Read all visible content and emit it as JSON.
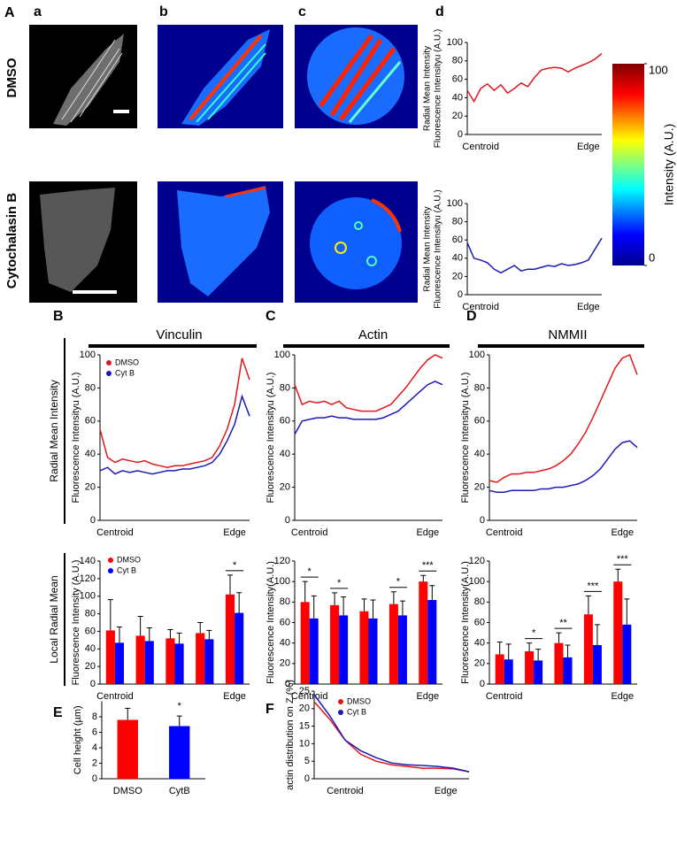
{
  "figure": {
    "panel_labels": [
      "A",
      "a",
      "b",
      "c",
      "d",
      "B",
      "C",
      "D",
      "E",
      "F"
    ],
    "row_labels": [
      "DMSO",
      "Cytochalasin B"
    ],
    "side_labels": [
      "Radial Mean Intensity",
      "Local Radial Mean"
    ],
    "colorbar": {
      "label": "Intensity (A.U.)",
      "lim": [
        0,
        100
      ],
      "ticks": [
        0,
        100
      ]
    }
  },
  "chart_data": [
    {
      "type": "line",
      "ylabel": [
        "Radial Mean Intensity",
        "Fluorescence Intensityu (A.U.)"
      ],
      "x": [
        0,
        0.05,
        0.1,
        0.15,
        0.2,
        0.25,
        0.3,
        0.35,
        0.4,
        0.45,
        0.5,
        0.55,
        0.6,
        0.65,
        0.7,
        0.75,
        0.8,
        0.85,
        0.9,
        0.95,
        1
      ],
      "xlim": [
        0,
        1
      ],
      "xticks": [
        {
          "value": 0.1,
          "label": "Centroid"
        },
        {
          "value": 0.9,
          "label": "Edge"
        }
      ],
      "ylim": [
        0,
        100
      ],
      "yticks": [
        0,
        20,
        40,
        60,
        80,
        100
      ],
      "legend": false,
      "series": [
        {
          "color": "#e3161c",
          "values": [
            48,
            36,
            50,
            55,
            48,
            54,
            45,
            50,
            56,
            52,
            62,
            70,
            72,
            73,
            72,
            68,
            72,
            75,
            78,
            82,
            88
          ]
        }
      ]
    },
    {
      "type": "line",
      "ylabel": [
        "Radial Mean Intensity",
        "Fluorescence Intensityu (A.U.)"
      ],
      "x": [
        0,
        0.05,
        0.1,
        0.15,
        0.2,
        0.25,
        0.3,
        0.35,
        0.4,
        0.45,
        0.5,
        0.55,
        0.6,
        0.65,
        0.7,
        0.75,
        0.8,
        0.85,
        0.9,
        0.95,
        1
      ],
      "xlim": [
        0,
        1
      ],
      "xticks": [
        {
          "value": 0.1,
          "label": "Centroid"
        },
        {
          "value": 0.9,
          "label": "Edge"
        }
      ],
      "ylim": [
        0,
        100
      ],
      "yticks": [
        0,
        20,
        40,
        60,
        80,
        100
      ],
      "legend": false,
      "series": [
        {
          "color": "#1a1ab8",
          "values": [
            57,
            40,
            38,
            35,
            28,
            24,
            28,
            32,
            26,
            28,
            28,
            30,
            32,
            31,
            34,
            32,
            33,
            35,
            38,
            50,
            62
          ]
        }
      ]
    },
    {
      "type": "line",
      "title": "Vinculin",
      "ylabel": "Fluorescence Intensityu (A.U.)",
      "x": [
        0,
        0.05,
        0.1,
        0.15,
        0.2,
        0.25,
        0.3,
        0.35,
        0.4,
        0.45,
        0.5,
        0.55,
        0.6,
        0.65,
        0.7,
        0.75,
        0.8,
        0.85,
        0.9,
        0.95,
        1
      ],
      "xlim": [
        0,
        1
      ],
      "xticks": [
        {
          "value": 0.1,
          "label": "Centroid"
        },
        {
          "value": 0.9,
          "label": "Edge"
        }
      ],
      "ylim": [
        0,
        100
      ],
      "yticks": [
        0,
        20,
        40,
        60,
        80,
        100
      ],
      "legend": true,
      "series": [
        {
          "name": "DMSO",
          "color": "#e3161c",
          "values": [
            55,
            38,
            35,
            37,
            36,
            35,
            36,
            34,
            33,
            32,
            33,
            33,
            34,
            35,
            36,
            38,
            45,
            55,
            70,
            98,
            85
          ]
        },
        {
          "name": "Cyt B",
          "color": "#1a1ab8",
          "values": [
            30,
            32,
            28,
            30,
            29,
            30,
            29,
            28,
            29,
            30,
            30,
            31,
            31,
            32,
            33,
            35,
            40,
            48,
            58,
            75,
            63
          ]
        }
      ]
    },
    {
      "type": "line",
      "title": "Actin",
      "ylabel": "Fluorescence Intensityu (A.U.)",
      "x": [
        0,
        0.05,
        0.1,
        0.15,
        0.2,
        0.25,
        0.3,
        0.35,
        0.4,
        0.45,
        0.5,
        0.55,
        0.6,
        0.65,
        0.7,
        0.75,
        0.8,
        0.85,
        0.9,
        0.95,
        1
      ],
      "xlim": [
        0,
        1
      ],
      "xticks": [
        {
          "value": 0.1,
          "label": "Centroid"
        },
        {
          "value": 0.9,
          "label": "Edge"
        }
      ],
      "ylim": [
        0,
        100
      ],
      "yticks": [
        0,
        20,
        40,
        60,
        80,
        100
      ],
      "legend": false,
      "series": [
        {
          "color": "#e3161c",
          "values": [
            82,
            70,
            72,
            71,
            72,
            70,
            72,
            68,
            67,
            66,
            66,
            66,
            68,
            70,
            75,
            80,
            86,
            92,
            97,
            100,
            98
          ]
        },
        {
          "color": "#1a1ab8",
          "values": [
            52,
            60,
            61,
            62,
            62,
            63,
            62,
            62,
            61,
            61,
            61,
            61,
            62,
            64,
            66,
            70,
            74,
            78,
            82,
            84,
            82
          ]
        }
      ]
    },
    {
      "type": "line",
      "title": "NMMII",
      "ylabel": "Fluorescence Intensityu (A.U.)",
      "x": [
        0,
        0.05,
        0.1,
        0.15,
        0.2,
        0.25,
        0.3,
        0.35,
        0.4,
        0.45,
        0.5,
        0.55,
        0.6,
        0.65,
        0.7,
        0.75,
        0.8,
        0.85,
        0.9,
        0.95,
        1
      ],
      "xlim": [
        0,
        1
      ],
      "xticks": [
        {
          "value": 0.1,
          "label": "Centroid"
        },
        {
          "value": 0.9,
          "label": "Edge"
        }
      ],
      "ylim": [
        0,
        100
      ],
      "yticks": [
        0,
        20,
        40,
        60,
        80,
        100
      ],
      "legend": false,
      "series": [
        {
          "color": "#e3161c",
          "values": [
            24,
            23,
            26,
            28,
            28,
            29,
            29,
            30,
            31,
            33,
            36,
            40,
            46,
            53,
            62,
            72,
            82,
            92,
            98,
            100,
            88
          ]
        },
        {
          "color": "#1a1ab8",
          "values": [
            18,
            17,
            17,
            18,
            18,
            18,
            18,
            19,
            19,
            20,
            20,
            21,
            22,
            24,
            27,
            31,
            37,
            43,
            47,
            48,
            44
          ]
        }
      ]
    },
    {
      "type": "bar",
      "ylabel": "Fluorescence Intensity (A.U.)",
      "categories": [
        "Centroid",
        null,
        null,
        null,
        "Edge"
      ],
      "ylim": [
        0,
        140
      ],
      "yticks": [
        0,
        20,
        40,
        60,
        80,
        100,
        120,
        140
      ],
      "legend": true,
      "series": [
        {
          "name": "DMSO",
          "color": "#ff0000",
          "values": [
            61,
            55,
            52,
            58,
            102
          ],
          "errors": [
            35,
            22,
            10,
            12,
            22
          ]
        },
        {
          "name": "Cyt B",
          "color": "#0000ff",
          "values": [
            47,
            49,
            46,
            51,
            81
          ],
          "errors": [
            18,
            15,
            12,
            10,
            23
          ]
        }
      ],
      "significance": [
        null,
        null,
        null,
        null,
        "*"
      ]
    },
    {
      "type": "bar",
      "ylabel": "Fluorescence Intensity(A.U.)",
      "categories": [
        "Centroid",
        null,
        null,
        null,
        "Edge"
      ],
      "ylim": [
        0,
        120
      ],
      "yticks": [
        0,
        20,
        40,
        60,
        80,
        100,
        120
      ],
      "legend": false,
      "series": [
        {
          "color": "#ff0000",
          "values": [
            80,
            77,
            71,
            78,
            100
          ],
          "errors": [
            20,
            12,
            12,
            12,
            6
          ]
        },
        {
          "color": "#0000ff",
          "values": [
            64,
            67,
            64,
            67,
            82
          ],
          "errors": [
            22,
            18,
            18,
            14,
            14
          ]
        }
      ],
      "significance": [
        "*",
        "*",
        null,
        "*",
        "***"
      ]
    },
    {
      "type": "bar",
      "ylabel": "Fluorescence Intensity(A.U.)",
      "categories": [
        "Centroid",
        null,
        null,
        null,
        "Edge"
      ],
      "ylim": [
        0,
        120
      ],
      "yticks": [
        0,
        20,
        40,
        60,
        80,
        100,
        120
      ],
      "legend": false,
      "series": [
        {
          "color": "#ff0000",
          "values": [
            29,
            32,
            40,
            68,
            100
          ],
          "errors": [
            12,
            8,
            10,
            18,
            12
          ]
        },
        {
          "color": "#0000ff",
          "values": [
            24,
            23,
            26,
            38,
            58
          ],
          "errors": [
            15,
            11,
            12,
            20,
            25
          ]
        }
      ],
      "significance": [
        null,
        "*",
        "**",
        "***",
        "***"
      ]
    },
    {
      "type": "bar",
      "ylabel": "Cell height (µm)",
      "categories": [
        "DMSO",
        "CytB"
      ],
      "ylim": [
        0,
        10
      ],
      "yticks": [
        0,
        2,
        4,
        6,
        8
      ],
      "legend": false,
      "values": [
        7.6,
        6.8
      ],
      "errors": [
        1.5,
        1.3
      ],
      "colors": [
        "#ff0000",
        "#0000ff"
      ],
      "significance": [
        null,
        "*"
      ]
    },
    {
      "type": "line",
      "ylabel": "actin distribution on Z (%)",
      "x": [
        0,
        0.1,
        0.2,
        0.3,
        0.4,
        0.5,
        0.6,
        0.7,
        0.8,
        0.9,
        1
      ],
      "xlim": [
        0,
        1
      ],
      "xticks": [
        {
          "value": 0.2,
          "label": "Centroid"
        },
        {
          "value": 0.85,
          "label": "Edge"
        }
      ],
      "ylim": [
        0,
        25
      ],
      "yticks": [
        0,
        5,
        10,
        15,
        20,
        25
      ],
      "legend": true,
      "series": [
        {
          "name": "DMSO",
          "color": "#e3161c",
          "values": [
            22,
            17,
            11,
            7,
            5,
            4,
            3.5,
            3,
            3,
            2.8,
            2
          ]
        },
        {
          "name": "Cyt B",
          "color": "#1a1ab8",
          "values": [
            24,
            18,
            11,
            8,
            6,
            4.5,
            4,
            3.8,
            3.5,
            3,
            2
          ]
        }
      ]
    }
  ]
}
